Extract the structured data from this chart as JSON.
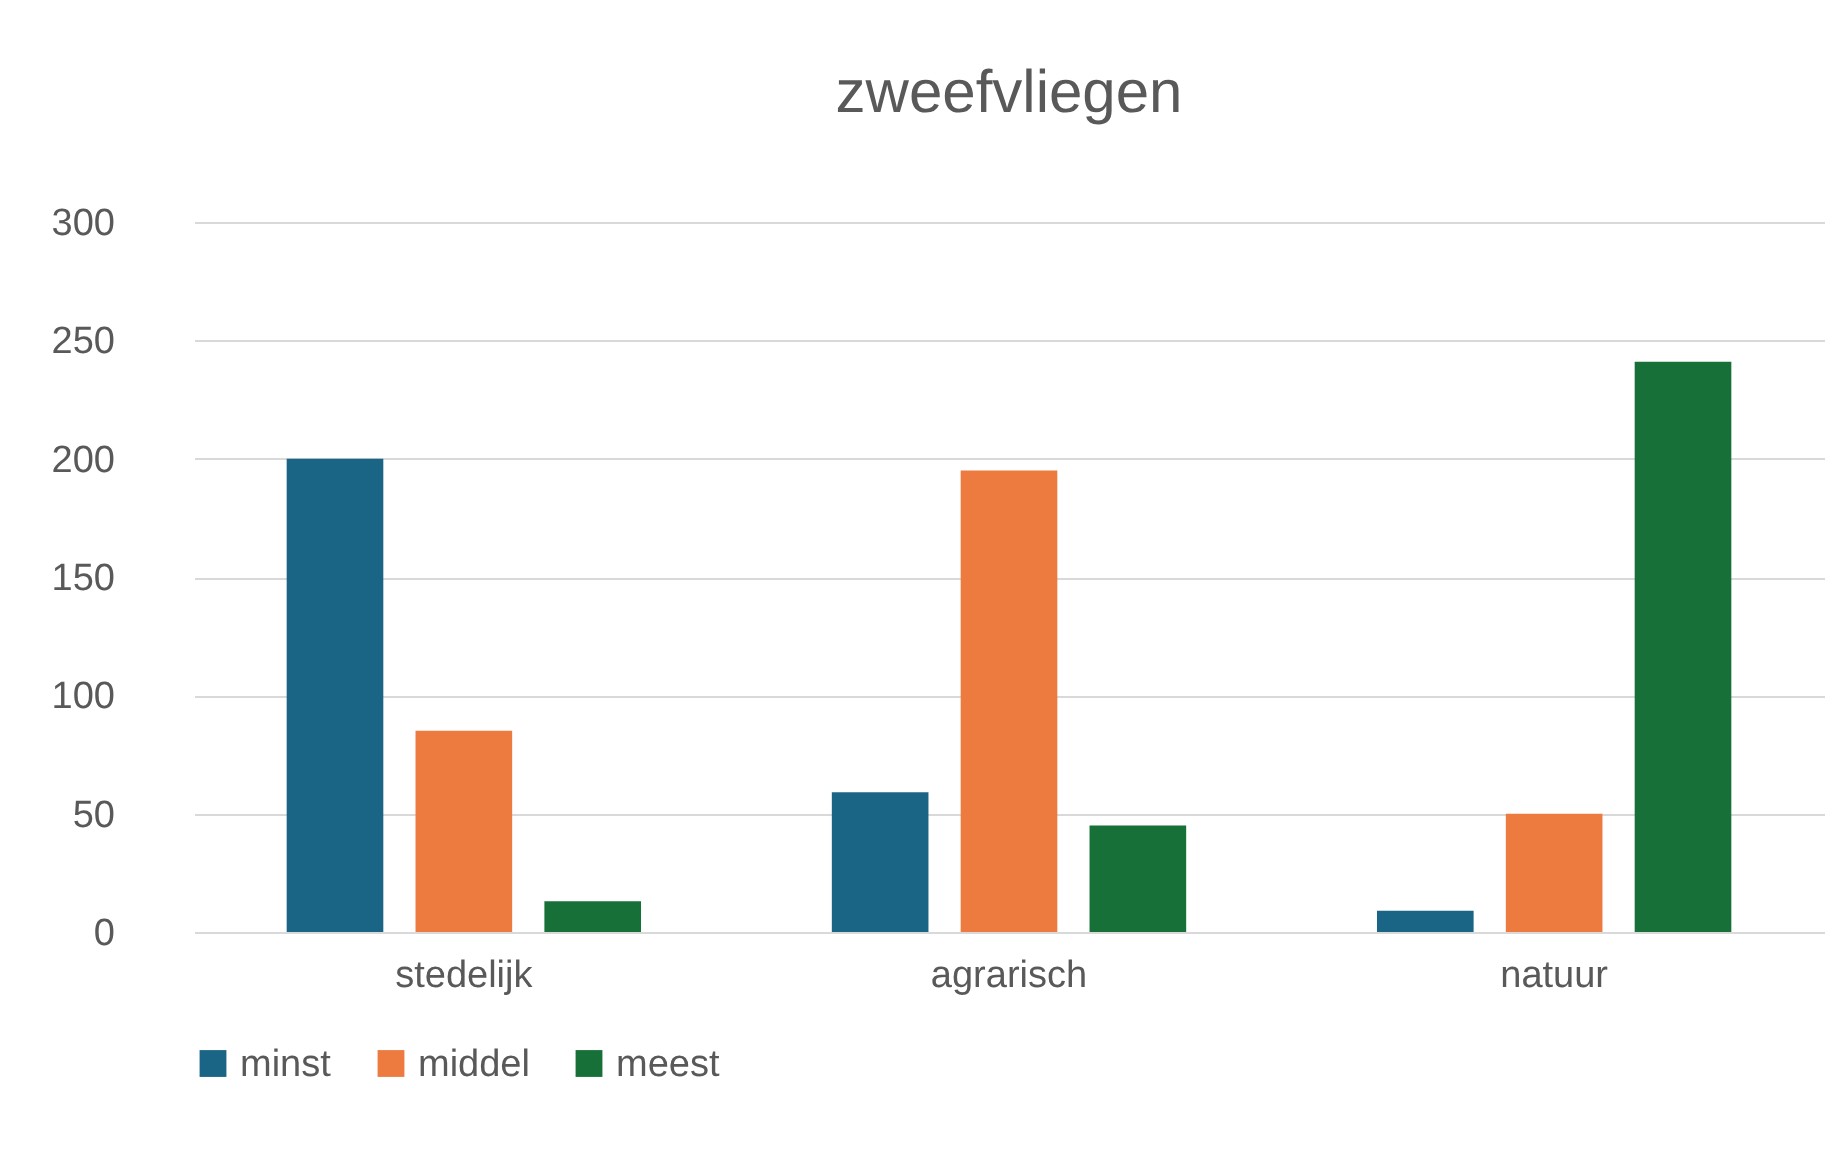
{
  "chart_data": {
    "type": "bar",
    "title": "zweefvliegen",
    "categories": [
      "stedelijk",
      "agrarisch",
      "natuur"
    ],
    "series": [
      {
        "name": "minst",
        "color": "#1a6585",
        "values": [
          200,
          59,
          9
        ]
      },
      {
        "name": "middel",
        "color": "#ed7b40",
        "values": [
          85,
          195,
          50
        ]
      },
      {
        "name": "meest",
        "color": "#177038",
        "values": [
          13,
          45,
          241
        ]
      }
    ],
    "ylim": [
      0,
      300
    ],
    "yticks": [
      0,
      50,
      100,
      150,
      200,
      250,
      300
    ],
    "grid": "y",
    "legend": "bottom"
  }
}
